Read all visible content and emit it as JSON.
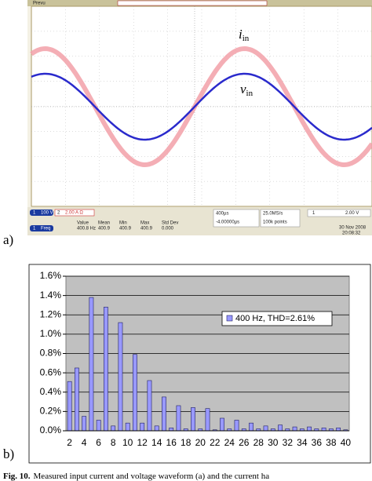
{
  "panel_a": {
    "label": "a)",
    "header": "Prevu",
    "traces": {
      "current": "i",
      "current_sub": "in",
      "voltage": "v",
      "voltage_sub": "in"
    },
    "status": {
      "ch1": "1",
      "ch1_scale": "100 V",
      "ch2": "2",
      "ch2_scale": "2.00 A Ω",
      "meas_ch": "1",
      "meas_name": "Freq",
      "stat_names": [
        "Value",
        "Mean",
        "Min",
        "Max",
        "Std Dev"
      ],
      "stat_values": [
        "400.8 Hz",
        "400.9",
        "400.9",
        "400.9",
        "0.000"
      ],
      "timebase": "400µs",
      "delay": "-4.00000µs",
      "rate": "25.0MS/s",
      "points": "100k points",
      "trig_ch": "1",
      "trig_level": "2.00 V",
      "date": "30 Nov 2008",
      "time": "20:08:32"
    }
  },
  "chart_data": {
    "type": "bar",
    "panel_label": "b)",
    "categories": [
      2,
      null,
      4,
      null,
      6,
      null,
      8,
      null,
      10,
      null,
      12,
      null,
      14,
      null,
      16,
      null,
      18,
      null,
      20,
      null,
      22,
      null,
      24,
      null,
      26,
      null,
      28,
      null,
      30,
      null,
      32,
      null,
      34,
      null,
      36,
      null,
      38,
      null,
      40
    ],
    "series": [
      {
        "name": "400 Hz, THD=2.61%",
        "color": "#9999ff",
        "values": [
          0.51,
          0.65,
          0.15,
          1.38,
          0.11,
          1.28,
          0.05,
          1.12,
          0.08,
          0.79,
          0.08,
          0.52,
          0.05,
          0.35,
          0.03,
          0.26,
          0.02,
          0.24,
          0.02,
          0.23,
          0.01,
          0.13,
          0.02,
          0.11,
          0.02,
          0.08,
          0.02,
          0.05,
          0.02,
          0.06,
          0.02,
          0.04,
          0.02,
          0.04,
          0.02,
          0.03,
          0.02,
          0.03,
          0.01
        ]
      }
    ],
    "ylim": [
      0,
      1.6
    ],
    "yticks": [
      {
        "value": 0,
        "label": "0.0%"
      },
      {
        "value": 0.2,
        "label": "0.2%"
      },
      {
        "value": 0.4,
        "label": "0.4%"
      },
      {
        "value": 0.6,
        "label": "0.6%"
      },
      {
        "value": 0.8,
        "label": "0.8%"
      },
      {
        "value": 1.0,
        "label": "1.0%"
      },
      {
        "value": 1.2,
        "label": "1.2%"
      },
      {
        "value": 1.4,
        "label": "1.4%"
      },
      {
        "value": 1.6,
        "label": "1.6%"
      }
    ],
    "grid": true
  },
  "caption": {
    "number": "Fig. 10.",
    "text": "Measured input current and voltage waveform (a) and the current ha"
  }
}
